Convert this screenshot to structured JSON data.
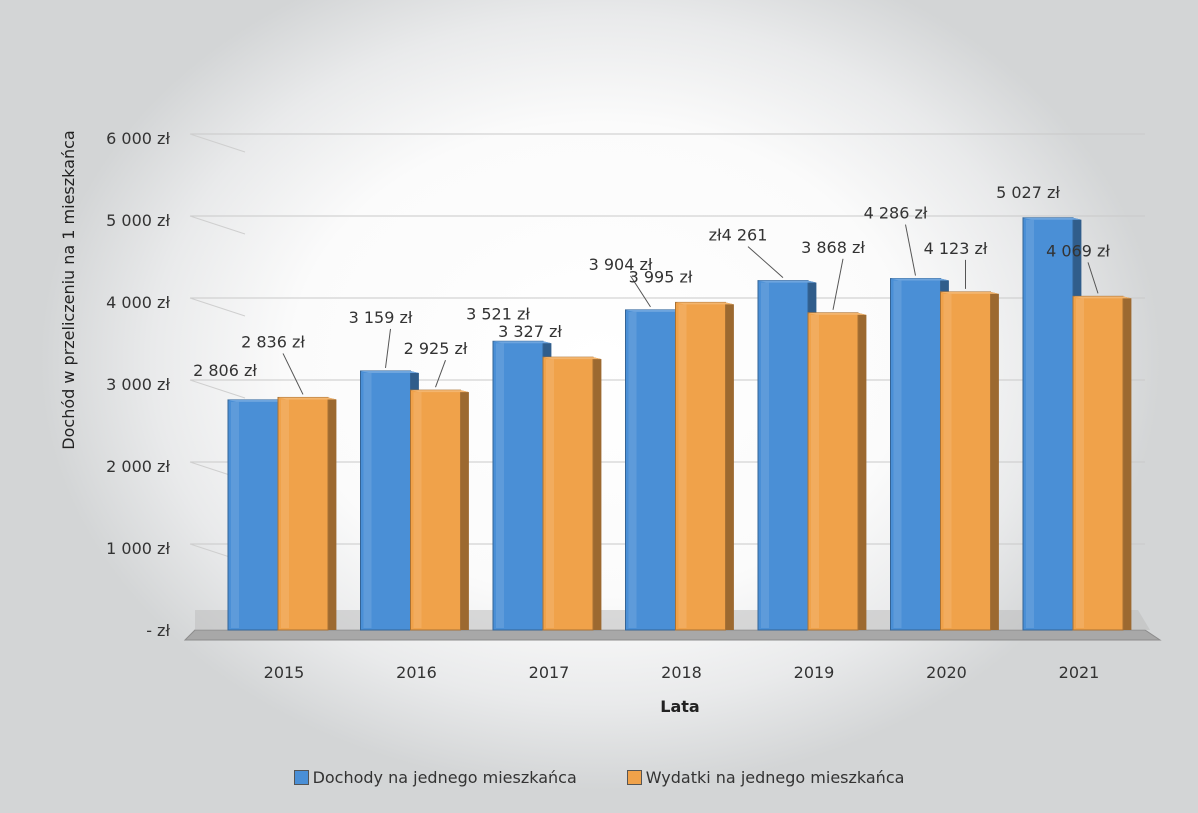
{
  "chart_data": {
    "type": "bar",
    "categories": [
      "2015",
      "2016",
      "2017",
      "2018",
      "2019",
      "2020",
      "2021"
    ],
    "series": [
      {
        "name": "Dochody na jednego mieszkańca",
        "values": [
          2806,
          3159,
          3521,
          3904,
          4261,
          4286,
          5027
        ],
        "labels": [
          "2 806 zł",
          "3 159 zł",
          "3 521 zł",
          "3 904 zł",
          "zł4 261",
          "4 286 zł",
          "5 027 zł"
        ],
        "color": "#4a8fd6"
      },
      {
        "name": "Wydatki na jednego mieszkańca",
        "values": [
          2836,
          2925,
          3327,
          3995,
          3868,
          4123,
          4069
        ],
        "labels": [
          "2 836 zł",
          "2 925 zł",
          "3 327 zł",
          "3 995 zł",
          "3 868 zł",
          "4 123 zł",
          "4 069 zł"
        ],
        "color": "#f0a24a"
      }
    ],
    "ylim": [
      0,
      6000
    ],
    "yticks": [
      {
        "value": 0,
        "label": "-   zł"
      },
      {
        "value": 1000,
        "label": "1 000 zł"
      },
      {
        "value": 2000,
        "label": "2 000 zł"
      },
      {
        "value": 3000,
        "label": "3 000 zł"
      },
      {
        "value": 4000,
        "label": "4 000 zł"
      },
      {
        "value": 5000,
        "label": "5 000 zł"
      },
      {
        "value": 6000,
        "label": "6 000 zł"
      }
    ],
    "xlabel": "Lata",
    "ylabel": "Dochód w przeliczeniu na  1 mieszkańca",
    "grid": true,
    "legend_position": "bottom"
  }
}
